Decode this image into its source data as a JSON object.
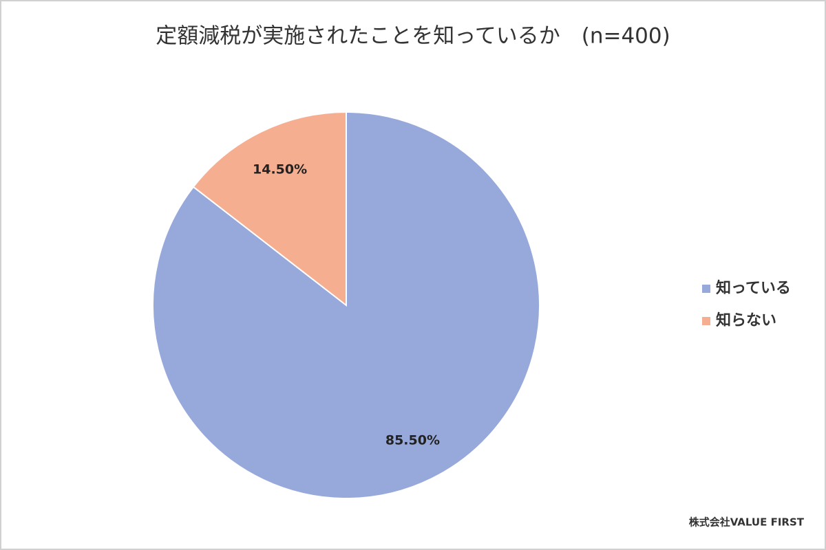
{
  "chart_data": {
    "type": "pie",
    "title": "定額減税が実施されたことを知っているか　(n=400)",
    "categories": [
      "知っている",
      "知らない"
    ],
    "values": [
      85.5,
      14.5
    ],
    "value_labels": [
      "85.50%",
      "14.50%"
    ],
    "colors": [
      "#97a9db",
      "#f6ae90"
    ],
    "legend": "right",
    "source": "株式会社VALUE FIRST"
  }
}
